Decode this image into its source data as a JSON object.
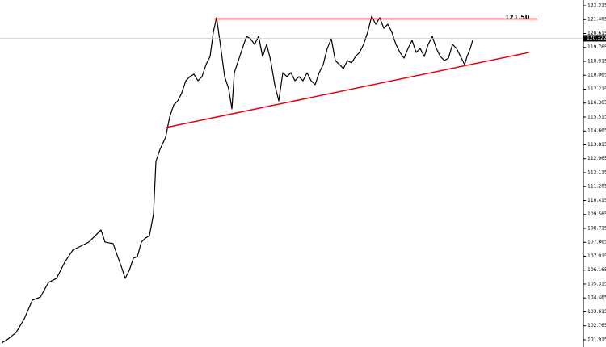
{
  "chart_data": {
    "type": "line",
    "x": [
      2,
      10,
      20,
      30,
      40,
      50,
      60,
      70,
      80,
      90,
      100,
      110,
      120,
      125,
      130,
      140,
      150,
      155,
      160,
      165,
      170,
      175,
      180,
      185,
      190,
      193,
      198,
      205,
      210,
      215,
      220,
      225,
      230,
      235,
      240,
      245,
      250,
      255,
      260,
      264,
      268,
      272,
      278,
      283,
      287,
      290,
      295,
      300,
      305,
      310,
      315,
      320,
      325,
      330,
      335,
      340,
      345,
      350,
      355,
      360,
      365,
      370,
      375,
      380,
      385,
      390,
      395,
      400,
      405,
      410,
      415,
      420,
      425,
      430,
      435,
      440,
      445,
      450,
      455,
      460,
      465,
      470,
      475,
      480,
      485,
      490,
      495,
      500,
      505,
      510,
      515,
      520,
      525,
      530,
      535,
      540,
      545,
      550,
      555,
      560,
      565,
      570,
      575,
      578,
      582,
      585
    ],
    "series": [
      {
        "color": "#000000",
        "values": [
          101.72,
          101.96,
          102.36,
          103.19,
          104.33,
          104.52,
          105.41,
          105.66,
          106.64,
          107.38,
          107.63,
          107.88,
          108.37,
          108.62,
          107.88,
          107.78,
          106.4,
          105.66,
          106.15,
          106.89,
          106.99,
          107.88,
          108.12,
          108.27,
          109.6,
          112.8,
          113.54,
          114.28,
          115.52,
          116.25,
          116.5,
          116.99,
          117.73,
          117.98,
          118.13,
          117.73,
          117.98,
          118.72,
          119.21,
          120.69,
          121.58,
          120.2,
          117.98,
          117.24,
          116.01,
          118.22,
          118.96,
          119.7,
          120.44,
          120.29,
          119.95,
          120.44,
          119.21,
          119.95,
          118.96,
          117.49,
          116.5,
          118.22,
          117.98,
          118.22,
          117.73,
          117.98,
          117.73,
          118.22,
          117.73,
          117.49,
          118.22,
          118.72,
          119.7,
          120.29,
          118.96,
          118.72,
          118.47,
          118.96,
          118.82,
          119.21,
          119.46,
          119.95,
          120.69,
          121.67,
          121.18,
          121.58,
          120.93,
          121.18,
          120.69,
          119.95,
          119.46,
          119.11,
          119.7,
          120.2,
          119.46,
          119.7,
          119.21,
          119.95,
          120.44,
          119.7,
          119.21,
          118.96,
          119.11,
          119.95,
          119.7,
          119.21,
          118.72,
          119.21,
          119.7,
          120.2
        ]
      }
    ],
    "xlim": [
      0,
      722
    ],
    "ylim": [
      101.47,
      122.66
    ],
    "yticks": [
      122.315,
      121.465,
      120.615,
      119.765,
      118.915,
      118.065,
      117.215,
      116.365,
      115.515,
      114.665,
      113.815,
      112.965,
      112.115,
      111.265,
      110.415,
      109.565,
      108.715,
      107.865,
      107.015,
      106.165,
      105.315,
      104.465,
      103.615,
      102.765,
      101.915
    ],
    "price_label": {
      "value": 120.322,
      "label": "120.322",
      "color": "#000000"
    },
    "trend_lines": [
      {
        "x": [
          265,
          665
        ],
        "y": [
          121.5,
          121.5
        ],
        "color": "#e8000b"
      },
      {
        "x": [
          205,
          655
        ],
        "y": [
          114.87,
          119.46
        ],
        "color": "#e8000b"
      }
    ],
    "annotations": [
      {
        "text": "121.50",
        "x": 640,
        "y": 121.5
      }
    ]
  }
}
